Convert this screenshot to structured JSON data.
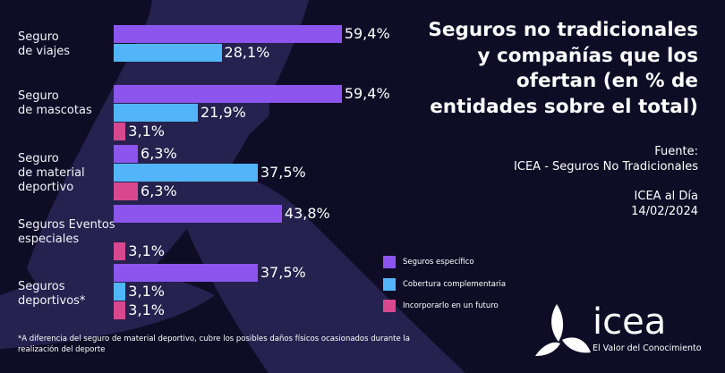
{
  "title": "Seguros no tradicionales\ny compañías que los\nofertan (en % de\nentidades sobre el total)",
  "source": {
    "label": "Fuente:",
    "text": "ICEA - Seguros No Tradicionales",
    "publisher": "ICEA al Día",
    "date": "14/02/2024"
  },
  "footnote": "*A diferencia del seguro de material deportivo, cubre los posibles daños físicos ocasionados durante la realización del deporte",
  "logo": {
    "word": "icea",
    "tagline": "El Valor del Conocimiento"
  },
  "chart_data": {
    "type": "bar",
    "orientation": "horizontal",
    "categories": [
      "Seguro\nde viajes",
      "Seguro\nde mascotas",
      "Seguro\nde material\ndeportivo",
      "Seguros Eventos\nespeciales",
      "Seguros\ndeportivos*"
    ],
    "series": [
      {
        "name": "Seguros específico",
        "color": "#8b55ee",
        "values": [
          59.4,
          59.4,
          6.3,
          43.8,
          37.5
        ]
      },
      {
        "name": "Cobertura complementaria",
        "color": "#52b5f9",
        "values": [
          28.1,
          21.9,
          37.5,
          null,
          3.1
        ]
      },
      {
        "name": "Incorporarlo en un futuro",
        "color": "#d8488f",
        "values": [
          null,
          3.1,
          6.3,
          3.1,
          3.1
        ]
      }
    ],
    "value_labels": [
      [
        "59,4%",
        "59,4%",
        "6,3%",
        "43,8%",
        "37,5%"
      ],
      [
        "28,1%",
        "21,9%",
        "37,5%",
        null,
        "3,1%"
      ],
      [
        null,
        "3,1%",
        "6,3%",
        "3,1%",
        "3,1%"
      ]
    ],
    "legend_position": "bottom-right",
    "grid": false,
    "xlim": [
      0,
      60
    ]
  }
}
